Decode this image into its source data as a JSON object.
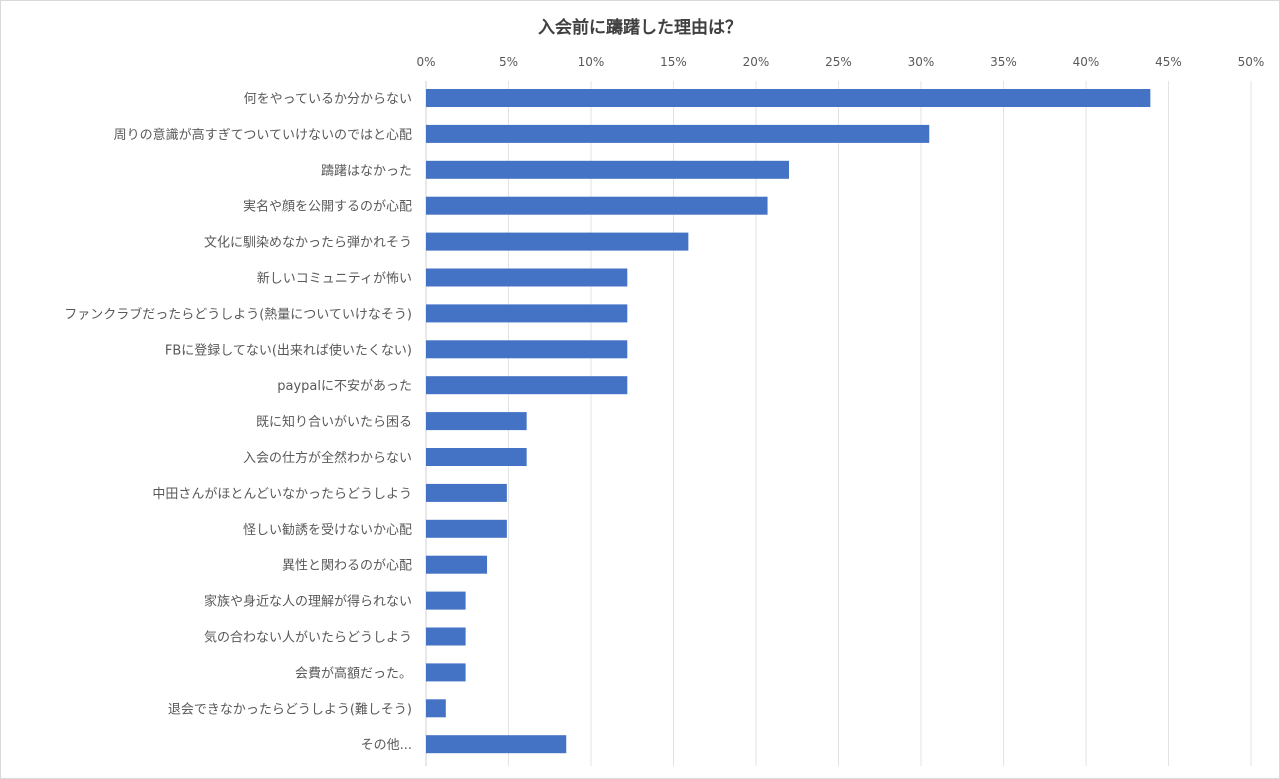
{
  "chart_data": {
    "type": "bar",
    "orientation": "horizontal",
    "title": "入会前に躊躇した理由は？",
    "xlabel": "",
    "ylabel": "",
    "xlim": [
      0,
      50
    ],
    "x_ticks": [
      "0%",
      "5%",
      "10%",
      "15%",
      "20%",
      "25%",
      "30%",
      "35%",
      "40%",
      "45%",
      "50%"
    ],
    "x_tick_values": [
      0,
      5,
      10,
      15,
      20,
      25,
      30,
      35,
      40,
      45,
      50
    ],
    "grid": "vertical",
    "legend": "none",
    "bar_color": "#4472c4",
    "categories": [
      "何をやっているか分からない",
      "周りの意識が高すぎてついていけないのではと心配",
      "躊躇はなかった",
      "実名や顔を公開するのが心配",
      "文化に馴染めなかったら弾かれそう",
      "新しいコミュニティが怖い",
      "ファンクラブだったらどうしよう(熱量についていけなそう)",
      "FBに登録してない(出来れば使いたくない)",
      "paypalに不安があった",
      "既に知り合いがいたら困る",
      "入会の仕方が全然わからない",
      "中田さんがほとんどいなかったらどうしよう",
      "怪しい勧誘を受けないか心配",
      "異性と関わるのが心配",
      "家族や身近な人の理解が得られない",
      "気の合わない人がいたらどうしよう",
      "会費が高額だった。",
      "退会できなかったらどうしよう(難しそう)",
      "その他..."
    ],
    "values": [
      43.9,
      30.5,
      22.0,
      20.7,
      15.9,
      12.2,
      12.2,
      12.2,
      12.2,
      6.1,
      6.1,
      4.9,
      4.9,
      3.7,
      2.4,
      2.4,
      2.4,
      1.2,
      8.5
    ]
  }
}
